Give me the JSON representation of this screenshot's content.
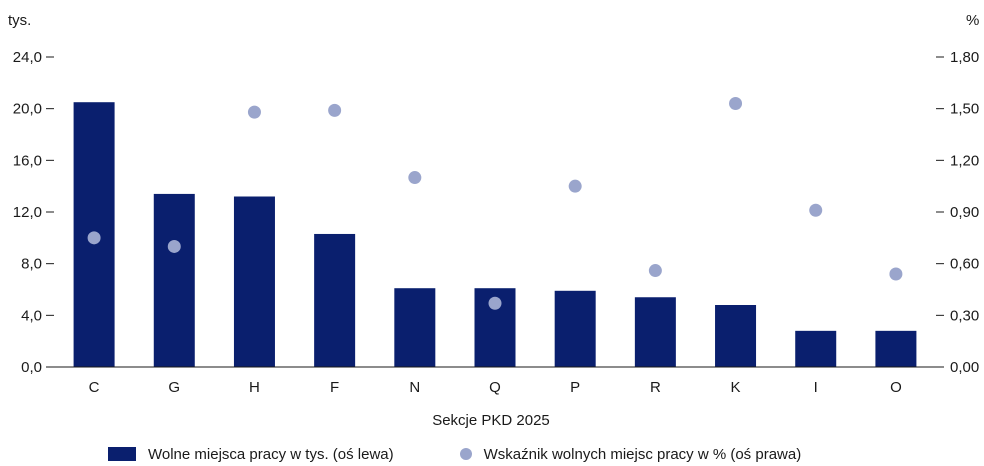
{
  "chart_data": {
    "type": "bar",
    "categories": [
      "C",
      "G",
      "H",
      "F",
      "N",
      "Q",
      "P",
      "R",
      "K",
      "I",
      "O"
    ],
    "series": [
      {
        "name": "Wolne miejsca pracy w tys. (oś lewa)",
        "type": "bar",
        "axis": "left",
        "values": [
          20.5,
          13.4,
          13.2,
          10.3,
          6.1,
          6.1,
          5.9,
          5.4,
          4.8,
          2.8,
          2.8
        ]
      },
      {
        "name": "Wskaźnik wolnych miejsc pracy w % (oś prawa)",
        "type": "scatter",
        "axis": "right",
        "values": [
          0.75,
          0.7,
          1.48,
          1.49,
          1.1,
          0.37,
          1.05,
          0.56,
          1.53,
          0.91,
          0.54
        ]
      }
    ],
    "xlabel": "Sekcje PKD 2025",
    "y_left": {
      "unit": "tys.",
      "range": [
        0,
        24
      ],
      "ticks": [
        0,
        4,
        8,
        12,
        16,
        20,
        24
      ],
      "tick_labels": [
        "0,0",
        "4,0",
        "8,0",
        "12,0",
        "16,0",
        "20,0",
        "24,0"
      ]
    },
    "y_right": {
      "unit": "%",
      "range": [
        0,
        1.8
      ],
      "ticks": [
        0,
        0.3,
        0.6,
        0.9,
        1.2,
        1.5,
        1.8
      ],
      "tick_labels": [
        "0,00",
        "0,30",
        "0,60",
        "0,90",
        "1,20",
        "1,50",
        "1,80"
      ]
    },
    "grid": false,
    "legend_position": "bottom",
    "colors": {
      "bar": "#0a1f6e",
      "dot": "#9aa5cc",
      "axis": "#1a1a1a"
    }
  }
}
